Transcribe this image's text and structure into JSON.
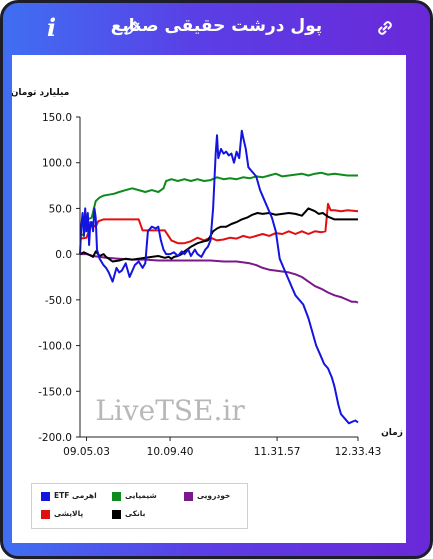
{
  "header": {
    "title": "پول درشت حقیقی صنایع",
    "info_icon": "i",
    "edit_icon_name": "pencil-icon",
    "link_icon_name": "link-icon"
  },
  "colors": {
    "header_gradient_start": "#3f6ff2",
    "header_gradient_end": "#6a28d8",
    "frame_border": "#1e1e2a"
  },
  "chart_data": {
    "type": "line",
    "ylabel": "میلیارد تومان",
    "xlabel": "زمان",
    "watermark": "LiveTSE.ir",
    "ylim": [
      -200,
      150
    ],
    "yticks": [
      "150.0",
      "100.0",
      "50.0",
      "0.0",
      "-50.0",
      "-100.0",
      "-150.0",
      "-200.0"
    ],
    "ytick_values": [
      150,
      100,
      50,
      0,
      -50,
      -100,
      -150,
      -200
    ],
    "xlim": [
      "09:00",
      "12:33"
    ],
    "xticks": [
      "09.05.03",
      "10.09.40",
      "11.31.57",
      "12.33.43"
    ],
    "xtick_values": [
      "09:05",
      "10:09",
      "11:31",
      "12:33"
    ],
    "grid": false,
    "legend_position": "bottom-left",
    "series": [
      {
        "name": "اهرمی ETF",
        "color": "#1414e0",
        "points": [
          [
            "09:00",
            0
          ],
          [
            "09:01",
            30
          ],
          [
            "09:02",
            45
          ],
          [
            "09:03",
            20
          ],
          [
            "09:04",
            50
          ],
          [
            "09:05",
            25
          ],
          [
            "09:06",
            45
          ],
          [
            "09:07",
            10
          ],
          [
            "09:08",
            35
          ],
          [
            "09:09",
            35
          ],
          [
            "09:10",
            25
          ],
          [
            "09:11",
            50
          ],
          [
            "09:12",
            40
          ],
          [
            "09:13",
            5
          ],
          [
            "09:15",
            -5
          ],
          [
            "09:18",
            -12
          ],
          [
            "09:20",
            -15
          ],
          [
            "09:22",
            -20
          ],
          [
            "09:25",
            -30
          ],
          [
            "09:28",
            -15
          ],
          [
            "09:30",
            -20
          ],
          [
            "09:32",
            -18
          ],
          [
            "09:35",
            -10
          ],
          [
            "09:38",
            -25
          ],
          [
            "09:42",
            -12
          ],
          [
            "09:45",
            -8
          ],
          [
            "09:48",
            -15
          ],
          [
            "09:50",
            -10
          ],
          [
            "09:52",
            25
          ],
          [
            "09:55",
            30
          ],
          [
            "09:58",
            28
          ],
          [
            "10:00",
            30
          ],
          [
            "10:02",
            15
          ],
          [
            "10:04",
            5
          ],
          [
            "10:06",
            0
          ],
          [
            "10:09",
            0
          ],
          [
            "10:12",
            2
          ],
          [
            "10:15",
            -2
          ],
          [
            "10:18",
            3
          ],
          [
            "10:20",
            0
          ],
          [
            "10:23",
            5
          ],
          [
            "10:25",
            -2
          ],
          [
            "10:28",
            5
          ],
          [
            "10:30",
            0
          ],
          [
            "10:33",
            -3
          ],
          [
            "10:36",
            5
          ],
          [
            "10:38",
            8
          ],
          [
            "10:40",
            15
          ],
          [
            "10:42",
            50
          ],
          [
            "10:43",
            80
          ],
          [
            "10:44",
            110
          ],
          [
            "10:45",
            130
          ],
          [
            "10:46",
            105
          ],
          [
            "10:48",
            115
          ],
          [
            "10:50",
            110
          ],
          [
            "10:52",
            112
          ],
          [
            "10:54",
            108
          ],
          [
            "10:56",
            110
          ],
          [
            "10:58",
            100
          ],
          [
            "11:00",
            112
          ],
          [
            "11:02",
            105
          ],
          [
            "11:03",
            120
          ],
          [
            "11:04",
            135
          ],
          [
            "11:05",
            128
          ],
          [
            "11:07",
            115
          ],
          [
            "11:09",
            95
          ],
          [
            "11:12",
            90
          ],
          [
            "11:15",
            85
          ],
          [
            "11:18",
            70
          ],
          [
            "11:21",
            60
          ],
          [
            "11:24",
            50
          ],
          [
            "11:27",
            40
          ],
          [
            "11:30",
            25
          ],
          [
            "11:33",
            -5
          ],
          [
            "11:36",
            -15
          ],
          [
            "11:39",
            -25
          ],
          [
            "11:42",
            -35
          ],
          [
            "11:45",
            -45
          ],
          [
            "11:48",
            -50
          ],
          [
            "11:51",
            -55
          ],
          [
            "11:55",
            -70
          ],
          [
            "11:58",
            -85
          ],
          [
            "12:01",
            -100
          ],
          [
            "12:04",
            -110
          ],
          [
            "12:07",
            -120
          ],
          [
            "12:10",
            -125
          ],
          [
            "12:13",
            -135
          ],
          [
            "12:15",
            -145
          ],
          [
            "12:18",
            -165
          ],
          [
            "12:20",
            -175
          ],
          [
            "12:23",
            -180
          ],
          [
            "12:26",
            -185
          ],
          [
            "12:29",
            -183
          ],
          [
            "12:31",
            -182
          ],
          [
            "12:33",
            -184
          ]
        ]
      },
      {
        "name": "شیمیایی",
        "color": "#0e8a1e",
        "points": [
          [
            "09:00",
            20
          ],
          [
            "09:03",
            22
          ],
          [
            "09:06",
            38
          ],
          [
            "09:09",
            40
          ],
          [
            "09:12",
            58
          ],
          [
            "09:15",
            62
          ],
          [
            "09:18",
            64
          ],
          [
            "09:22",
            65
          ],
          [
            "09:26",
            66
          ],
          [
            "09:30",
            68
          ],
          [
            "09:35",
            70
          ],
          [
            "09:40",
            72
          ],
          [
            "09:45",
            70
          ],
          [
            "09:50",
            68
          ],
          [
            "09:55",
            70
          ],
          [
            "10:00",
            68
          ],
          [
            "10:04",
            72
          ],
          [
            "10:06",
            80
          ],
          [
            "10:10",
            82
          ],
          [
            "10:15",
            80
          ],
          [
            "10:20",
            82
          ],
          [
            "10:25",
            80
          ],
          [
            "10:30",
            82
          ],
          [
            "10:35",
            80
          ],
          [
            "10:40",
            81
          ],
          [
            "10:45",
            84
          ],
          [
            "10:50",
            82
          ],
          [
            "10:55",
            83
          ],
          [
            "11:00",
            82
          ],
          [
            "11:05",
            84
          ],
          [
            "11:10",
            83
          ],
          [
            "11:15",
            85
          ],
          [
            "11:20",
            84
          ],
          [
            "11:25",
            86
          ],
          [
            "11:30",
            88
          ],
          [
            "11:35",
            85
          ],
          [
            "11:40",
            86
          ],
          [
            "11:45",
            87
          ],
          [
            "11:50",
            88
          ],
          [
            "11:55",
            86
          ],
          [
            "12:00",
            88
          ],
          [
            "12:05",
            89
          ],
          [
            "12:10",
            87
          ],
          [
            "12:15",
            88
          ],
          [
            "12:20",
            87
          ],
          [
            "12:25",
            86
          ],
          [
            "12:33",
            86
          ]
        ]
      },
      {
        "name": "خودرویی",
        "color": "#7a1a8a",
        "points": [
          [
            "09:00",
            0
          ],
          [
            "09:05",
            0
          ],
          [
            "09:10",
            -2
          ],
          [
            "09:15",
            -3
          ],
          [
            "09:20",
            -4
          ],
          [
            "09:30",
            -5
          ],
          [
            "09:40",
            -6
          ],
          [
            "09:50",
            -6
          ],
          [
            "10:00",
            -7
          ],
          [
            "10:10",
            -7
          ],
          [
            "10:20",
            -7
          ],
          [
            "10:30",
            -7
          ],
          [
            "10:40",
            -7
          ],
          [
            "10:50",
            -8
          ],
          [
            "11:00",
            -8
          ],
          [
            "11:05",
            -9
          ],
          [
            "11:10",
            -10
          ],
          [
            "11:15",
            -12
          ],
          [
            "11:20",
            -15
          ],
          [
            "11:25",
            -17
          ],
          [
            "11:30",
            -18
          ],
          [
            "11:35",
            -19
          ],
          [
            "11:40",
            -20
          ],
          [
            "11:45",
            -22
          ],
          [
            "11:50",
            -25
          ],
          [
            "11:55",
            -30
          ],
          [
            "12:00",
            -35
          ],
          [
            "12:05",
            -38
          ],
          [
            "12:10",
            -42
          ],
          [
            "12:15",
            -45
          ],
          [
            "12:20",
            -47
          ],
          [
            "12:25",
            -50
          ],
          [
            "12:28",
            -52
          ],
          [
            "12:31",
            -52
          ],
          [
            "12:33",
            -53
          ]
        ]
      },
      {
        "name": "پالایشی",
        "color": "#e01010",
        "points": [
          [
            "09:00",
            17
          ],
          [
            "09:05",
            18
          ],
          [
            "09:08",
            30
          ],
          [
            "09:10",
            32
          ],
          [
            "09:12",
            30
          ],
          [
            "09:14",
            36
          ],
          [
            "09:18",
            38
          ],
          [
            "09:25",
            38
          ],
          [
            "09:35",
            38
          ],
          [
            "09:45",
            38
          ],
          [
            "09:48",
            26
          ],
          [
            "09:55",
            26
          ],
          [
            "10:05",
            26
          ],
          [
            "10:10",
            15
          ],
          [
            "10:15",
            12
          ],
          [
            "10:20",
            12
          ],
          [
            "10:25",
            14
          ],
          [
            "10:30",
            18
          ],
          [
            "10:35",
            15
          ],
          [
            "10:40",
            18
          ],
          [
            "10:45",
            15
          ],
          [
            "10:50",
            16
          ],
          [
            "10:55",
            18
          ],
          [
            "11:00",
            17
          ],
          [
            "11:05",
            20
          ],
          [
            "11:10",
            18
          ],
          [
            "11:15",
            20
          ],
          [
            "11:20",
            22
          ],
          [
            "11:25",
            20
          ],
          [
            "11:30",
            23
          ],
          [
            "11:35",
            22
          ],
          [
            "11:40",
            25
          ],
          [
            "11:45",
            22
          ],
          [
            "11:50",
            25
          ],
          [
            "11:55",
            22
          ],
          [
            "12:00",
            25
          ],
          [
            "12:05",
            24
          ],
          [
            "12:08",
            25
          ],
          [
            "12:10",
            55
          ],
          [
            "12:12",
            48
          ],
          [
            "12:15",
            48
          ],
          [
            "12:20",
            47
          ],
          [
            "12:25",
            48
          ],
          [
            "12:33",
            47
          ]
        ]
      },
      {
        "name": "بانکی",
        "color": "#000000",
        "points": [
          [
            "09:00",
            0
          ],
          [
            "09:03",
            2
          ],
          [
            "09:06",
            0
          ],
          [
            "09:10",
            -3
          ],
          [
            "09:12",
            3
          ],
          [
            "09:15",
            -2
          ],
          [
            "09:18",
            0
          ],
          [
            "09:20",
            -3
          ],
          [
            "09:22",
            -5
          ],
          [
            "09:25",
            -8
          ],
          [
            "09:30",
            -7
          ],
          [
            "09:35",
            -5
          ],
          [
            "09:40",
            -6
          ],
          [
            "09:45",
            -5
          ],
          [
            "09:50",
            -4
          ],
          [
            "09:55",
            -3
          ],
          [
            "10:00",
            -2
          ],
          [
            "10:05",
            -4
          ],
          [
            "10:08",
            -3
          ],
          [
            "10:10",
            -5
          ],
          [
            "10:12",
            -3
          ],
          [
            "10:15",
            -2
          ],
          [
            "10:18",
            0
          ],
          [
            "10:20",
            3
          ],
          [
            "10:25",
            8
          ],
          [
            "10:30",
            12
          ],
          [
            "10:35",
            14
          ],
          [
            "10:38",
            15
          ],
          [
            "10:40",
            20
          ],
          [
            "10:42",
            25
          ],
          [
            "10:45",
            28
          ],
          [
            "10:48",
            30
          ],
          [
            "10:52",
            30
          ],
          [
            "10:56",
            33
          ],
          [
            "11:00",
            35
          ],
          [
            "11:04",
            38
          ],
          [
            "11:08",
            40
          ],
          [
            "11:12",
            43
          ],
          [
            "11:16",
            45
          ],
          [
            "11:20",
            44
          ],
          [
            "11:25",
            45
          ],
          [
            "11:30",
            43
          ],
          [
            "11:35",
            44
          ],
          [
            "11:40",
            45
          ],
          [
            "11:45",
            44
          ],
          [
            "11:50",
            42
          ],
          [
            "11:55",
            50
          ],
          [
            "12:00",
            47
          ],
          [
            "12:03",
            44
          ],
          [
            "12:06",
            45
          ],
          [
            "12:10",
            41
          ],
          [
            "12:15",
            38
          ],
          [
            "12:20",
            38
          ],
          [
            "12:25",
            38
          ],
          [
            "12:33",
            38
          ]
        ]
      }
    ]
  }
}
